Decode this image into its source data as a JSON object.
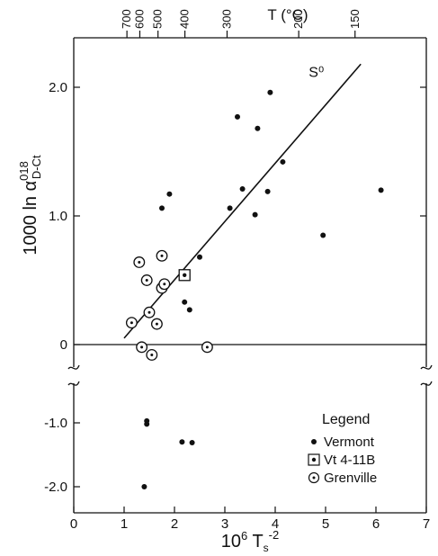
{
  "chart_data": {
    "type": "scatter",
    "title": "",
    "xlabel": "10⁶ T_s⁻²",
    "ylabel": "1000 ln α⁰¹⁸ D-Ct",
    "top_axis_label": "T (°C)",
    "xlim": [
      0,
      7
    ],
    "ylim_upper": [
      -0.25,
      2.2
    ],
    "ylim_lower": [
      -2.15,
      -0.55
    ],
    "x_ticks": [
      "0",
      "1",
      "2",
      "3",
      "4",
      "5",
      "6",
      "7"
    ],
    "y_ticks_upper": [
      "0",
      "1.0",
      "2.0"
    ],
    "y_ticks_lower": [
      "-1.0",
      "-2.0"
    ],
    "top_ticks": [
      {
        "label": "700",
        "T": 700
      },
      {
        "label": "600",
        "T": 600
      },
      {
        "label": "500",
        "T": 500
      },
      {
        "label": "400",
        "T": 400
      },
      {
        "label": "300",
        "T": 300
      },
      {
        "label": "200",
        "T": 200
      },
      {
        "label": "150",
        "T": 150
      }
    ],
    "line": {
      "label": "S⁰",
      "points": [
        [
          1.0,
          0.05
        ],
        [
          5.7,
          2.18
        ]
      ]
    },
    "legend_title": "Legend",
    "legend_position": "lower-right",
    "series": [
      {
        "name": "Vermont",
        "marker": "dot",
        "points": [
          [
            1.75,
            1.06
          ],
          [
            1.9,
            1.17
          ],
          [
            2.2,
            0.33
          ],
          [
            2.3,
            0.27
          ],
          [
            2.5,
            0.68
          ],
          [
            3.1,
            1.06
          ],
          [
            3.25,
            1.77
          ],
          [
            3.35,
            1.21
          ],
          [
            3.6,
            1.01
          ],
          [
            3.65,
            1.68
          ],
          [
            3.85,
            1.19
          ],
          [
            3.9,
            1.96
          ],
          [
            4.15,
            1.42
          ],
          [
            4.95,
            0.85
          ],
          [
            6.1,
            1.2
          ],
          [
            1.45,
            -0.97
          ],
          [
            1.45,
            -1.02
          ],
          [
            2.15,
            -1.3
          ],
          [
            2.35,
            -1.31
          ],
          [
            1.4,
            -2.0
          ]
        ]
      },
      {
        "name": "Vt 4-11B",
        "marker": "boxed-dot",
        "points": [
          [
            2.2,
            0.54
          ]
        ]
      },
      {
        "name": "Grenville",
        "marker": "circled-dot",
        "points": [
          [
            1.15,
            0.17
          ],
          [
            1.3,
            0.64
          ],
          [
            1.35,
            -0.02
          ],
          [
            1.45,
            0.5
          ],
          [
            1.5,
            0.25
          ],
          [
            1.55,
            -0.08
          ],
          [
            1.65,
            0.16
          ],
          [
            1.75,
            0.44
          ],
          [
            1.75,
            0.69
          ],
          [
            1.8,
            0.47
          ],
          [
            2.65,
            -0.02
          ]
        ]
      }
    ]
  }
}
